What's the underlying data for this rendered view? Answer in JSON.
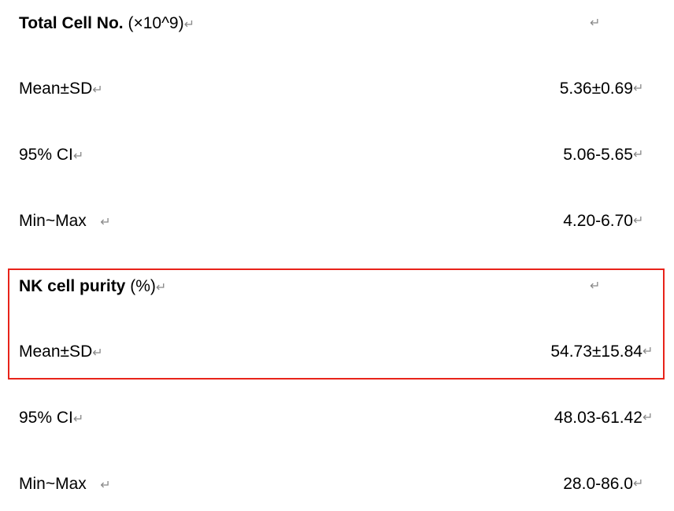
{
  "return_mark": "↵",
  "highlight_color": "#e8231a",
  "sections": [
    {
      "title_bold": "Total Cell No.",
      "title_unit": " (×10^9)",
      "rows": [
        {
          "label": "Mean±SD",
          "value": "5.36±0.69"
        },
        {
          "label": "95% CI",
          "value": "5.06-5.65"
        },
        {
          "label": "Min~Max   ",
          "value": "4.20-6.70"
        }
      ]
    },
    {
      "title_bold": "NK cell purity",
      "title_unit": " (%)",
      "rows": [
        {
          "label": "Mean±SD",
          "value": "54.73±15.84"
        },
        {
          "label": "95% CI",
          "value": "48.03-61.42"
        },
        {
          "label": "Min~Max   ",
          "value": "28.0-86.0"
        }
      ]
    }
  ]
}
